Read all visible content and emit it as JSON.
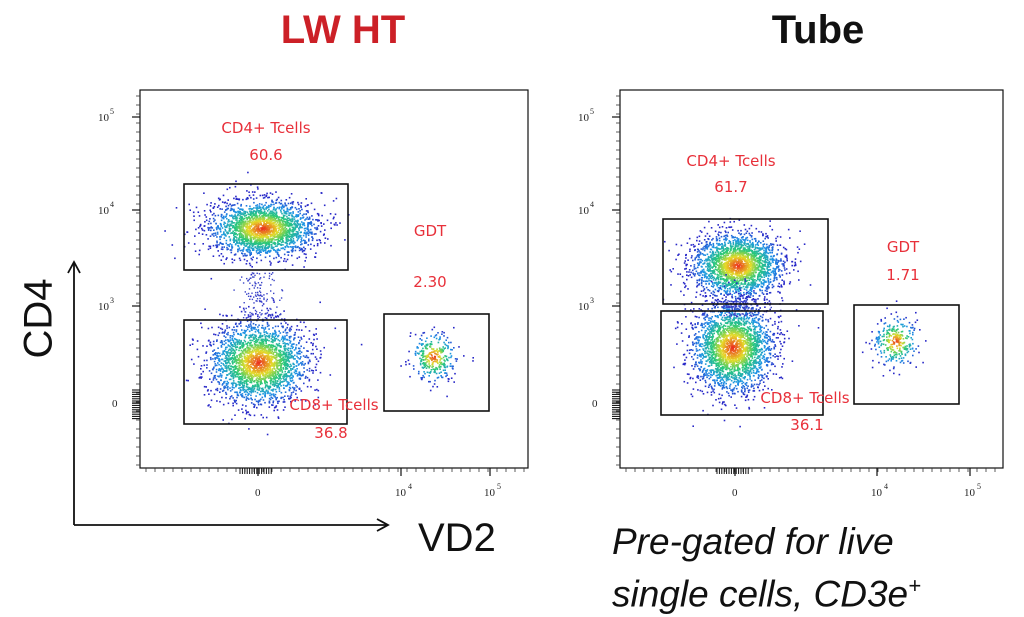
{
  "titles": {
    "left": "LW HT",
    "right": "Tube"
  },
  "axes": {
    "y_label": "CD4",
    "x_label": "VD2"
  },
  "note": {
    "line1": "Pre-gated for live",
    "line2": "single cells, CD3e",
    "sup": "+"
  },
  "colors": {
    "left_title": "#cc2027",
    "gate_text": "#e8303a",
    "gate_box": "#111111"
  },
  "chart_data": [
    {
      "type": "scatter",
      "title": "LW HT",
      "xlabel": "VD2",
      "ylabel": "CD4",
      "x_ticks": [
        {
          "base": "0",
          "exp": ""
        },
        {
          "base": "10",
          "exp": "4"
        },
        {
          "base": "10",
          "exp": "5"
        }
      ],
      "y_ticks": [
        {
          "base": "0",
          "exp": ""
        },
        {
          "base": "10",
          "exp": "3"
        },
        {
          "base": "10",
          "exp": "4"
        },
        {
          "base": "10",
          "exp": "5"
        }
      ],
      "scale": "biexponential",
      "gates": [
        {
          "name": "CD4+ Tcells",
          "value": "60.6"
        },
        {
          "name": "CD8+ Tcells",
          "value": "36.8"
        },
        {
          "name": "GDT",
          "value": "2.30"
        }
      ]
    },
    {
      "type": "scatter",
      "title": "Tube",
      "xlabel": "VD2",
      "ylabel": "CD4",
      "x_ticks": [
        {
          "base": "0",
          "exp": ""
        },
        {
          "base": "10",
          "exp": "4"
        },
        {
          "base": "10",
          "exp": "5"
        }
      ],
      "y_ticks": [
        {
          "base": "0",
          "exp": ""
        },
        {
          "base": "10",
          "exp": "3"
        },
        {
          "base": "10",
          "exp": "4"
        },
        {
          "base": "10",
          "exp": "5"
        }
      ],
      "scale": "biexponential",
      "gates": [
        {
          "name": "CD4+ Tcells",
          "value": "61.7"
        },
        {
          "name": "CD8+ Tcells",
          "value": "36.1"
        },
        {
          "name": "GDT",
          "value": "1.71"
        }
      ]
    }
  ]
}
